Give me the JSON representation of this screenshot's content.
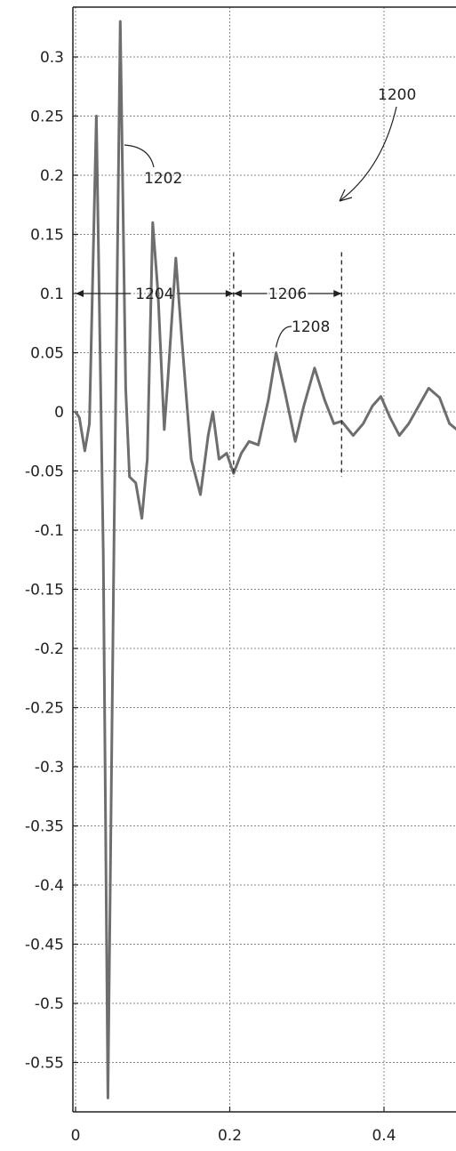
{
  "chart_data": {
    "type": "line",
    "title": "",
    "xlabel": "",
    "ylabel": "",
    "xlim": [
      0,
      0.5
    ],
    "ylim": [
      -0.6,
      0.34
    ],
    "grid": true,
    "x_ticks": [
      0,
      0.2,
      0.4
    ],
    "x_tick_labels": [
      "0",
      "0.2",
      "0.4"
    ],
    "y_ticks": [
      0.3,
      0.25,
      0.2,
      0.15,
      0.1,
      0.05,
      0,
      -0.05,
      -0.1,
      -0.15,
      -0.2,
      -0.25,
      -0.3,
      -0.35,
      -0.4,
      -0.45,
      -0.5,
      -0.55
    ],
    "y_tick_labels": [
      "0.3",
      "0.25",
      "0.2",
      "0.15",
      "0.1",
      "0.05",
      "0",
      "-0.05",
      "-0.1",
      "-0.15",
      "-0.2",
      "-0.25",
      "-0.3",
      "-0.35",
      "-0.4",
      "-0.45",
      "-0.5",
      "-0.55"
    ],
    "series": [
      {
        "points": [
          [
            0,
            0
          ],
          [
            0.005,
            -0.005
          ],
          [
            0.012,
            -0.033
          ],
          [
            0.018,
            -0.01
          ],
          [
            0.027,
            0.25
          ],
          [
            0.036,
            -0.12
          ],
          [
            0.042,
            -0.58
          ],
          [
            0.05,
            -0.1
          ],
          [
            0.058,
            0.33
          ],
          [
            0.065,
            0.02
          ],
          [
            0.07,
            -0.055
          ],
          [
            0.078,
            -0.06
          ],
          [
            0.086,
            -0.09
          ],
          [
            0.093,
            -0.04
          ],
          [
            0.1,
            0.16
          ],
          [
            0.107,
            0.1
          ],
          [
            0.115,
            -0.015
          ],
          [
            0.12,
            0.03
          ],
          [
            0.13,
            0.13
          ],
          [
            0.138,
            0.06
          ],
          [
            0.15,
            -0.04
          ],
          [
            0.162,
            -0.07
          ],
          [
            0.172,
            -0.02
          ],
          [
            0.178,
            0
          ],
          [
            0.186,
            -0.04
          ],
          [
            0.196,
            -0.035
          ],
          [
            0.205,
            -0.052
          ],
          [
            0.215,
            -0.035
          ],
          [
            0.225,
            -0.025
          ],
          [
            0.237,
            -0.028
          ],
          [
            0.25,
            0.01
          ],
          [
            0.26,
            0.05
          ],
          [
            0.272,
            0.015
          ],
          [
            0.285,
            -0.025
          ],
          [
            0.296,
            0.005
          ],
          [
            0.31,
            0.037
          ],
          [
            0.323,
            0.01
          ],
          [
            0.335,
            -0.01
          ],
          [
            0.345,
            -0.008
          ],
          [
            0.36,
            -0.02
          ],
          [
            0.373,
            -0.01
          ],
          [
            0.385,
            0.005
          ],
          [
            0.396,
            0.013
          ],
          [
            0.408,
            -0.005
          ],
          [
            0.42,
            -0.02
          ],
          [
            0.432,
            -0.01
          ],
          [
            0.445,
            0.005
          ],
          [
            0.458,
            0.02
          ],
          [
            0.472,
            0.012
          ],
          [
            0.485,
            -0.01
          ],
          [
            0.5,
            -0.018
          ]
        ]
      }
    ],
    "annotations": {
      "figure_ref": "1200",
      "signal_ref": "1202",
      "span1": {
        "label": "1204",
        "x_start": 0,
        "x_end": 0.205,
        "y": 0.1
      },
      "span2": {
        "label": "1206",
        "x_start": 0.205,
        "x_end": 0.345,
        "y": 0.1
      },
      "peak_ref": {
        "label": "1208",
        "x": 0.26,
        "y": 0.05
      },
      "dashed_markers": [
        {
          "x": 0.205,
          "y_top": 0.135,
          "y_bottom": -0.055
        },
        {
          "x": 0.345,
          "y_top": 0.135,
          "y_bottom": -0.055
        }
      ]
    }
  }
}
